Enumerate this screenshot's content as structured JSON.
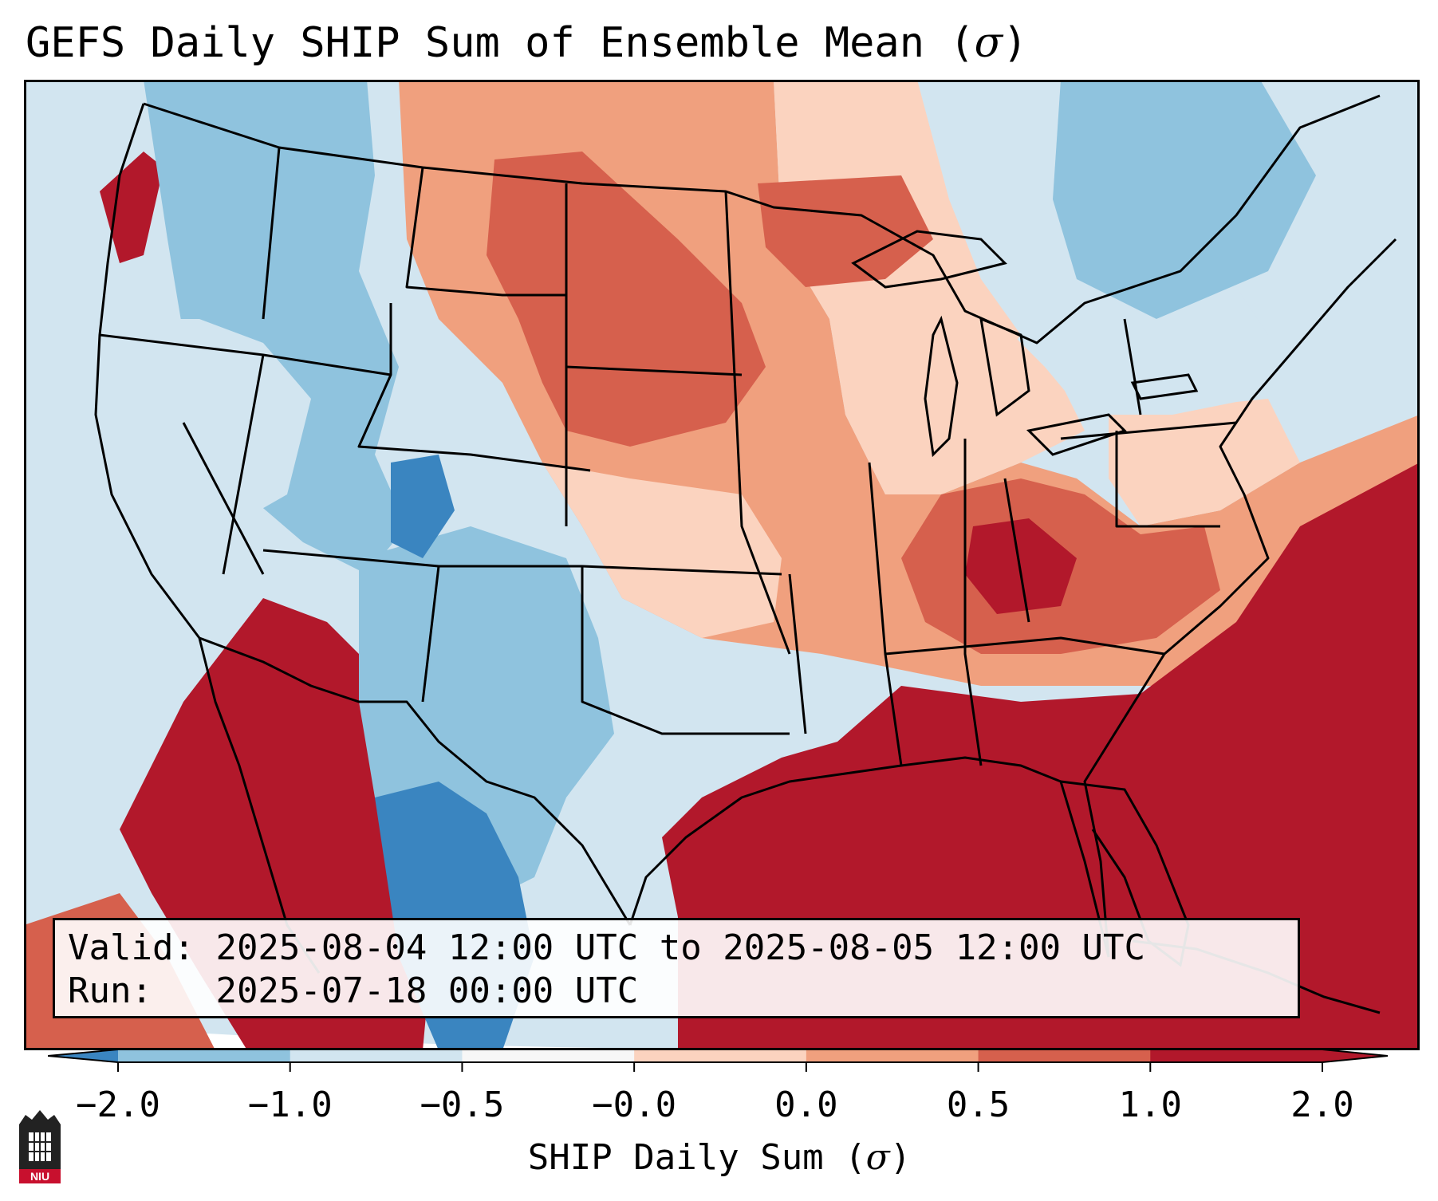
{
  "title": "GEFS Daily SHIP Sum of Ensemble Mean (σ)",
  "title_main": "GEFS Daily SHIP Sum of Ensemble Mean (",
  "title_symbol": "σ",
  "title_close": ")",
  "info": {
    "valid_label": "Valid:",
    "valid_value": "2025-08-04 12:00 UTC to 2025-08-05 12:00 UTC",
    "run_label": "Run:",
    "run_value": "2025-07-18 00:00 UTC"
  },
  "colorbar": {
    "ticks": [
      "−2.0",
      "−1.0",
      "−0.5",
      "−0.0",
      "0.0",
      "0.5",
      "1.0",
      "2.0"
    ],
    "colors": [
      "#3a85c0",
      "#8fc3de",
      "#d2e5f0",
      "#f7f7f7",
      "#fbd3bf",
      "#f0a07e",
      "#d6604d",
      "#b2182b"
    ],
    "label_main": "SHIP Daily Sum (",
    "label_symbol": "σ",
    "label_close": ")"
  },
  "logo": {
    "text": "NIU",
    "icon": "niu-seal-icon"
  },
  "map": {
    "region": "Continental United States",
    "ocean_color": "#d2e5f0"
  }
}
